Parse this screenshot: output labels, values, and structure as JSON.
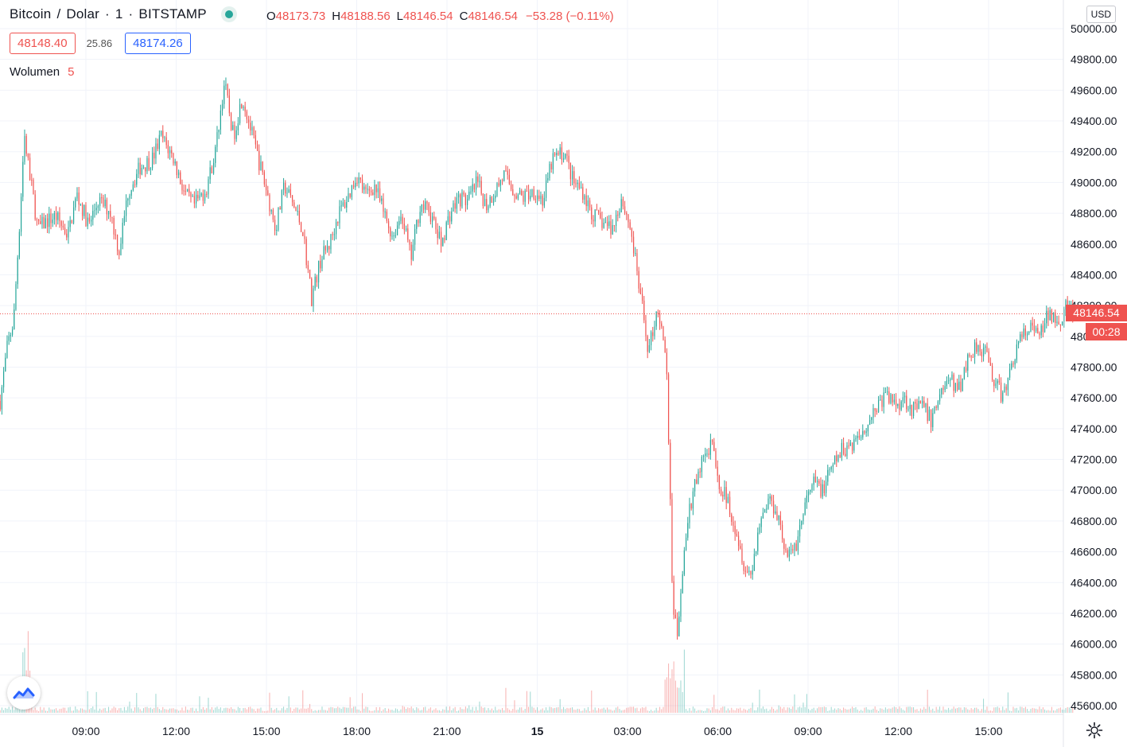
{
  "header": {
    "symbol": "Bitcoin",
    "currency": "Dolar",
    "interval": "1",
    "exchange": "BITSTAMP",
    "ohlc": {
      "o_label": "O",
      "o_value": "48173.73",
      "h_label": "H",
      "h_value": "48188.56",
      "l_label": "L",
      "l_value": "48146.54",
      "c_label": "C",
      "c_value": "48146.54",
      "change": "−53.28 (−0.11%)"
    },
    "bid": "48148.40",
    "spread": "25.86",
    "ask": "48174.26",
    "volume_label": "Wolumen",
    "volume_length": "5"
  },
  "price_axis": {
    "currency": "USD",
    "last_price": "48146.54",
    "countdown": "00:28"
  },
  "colors": {
    "up": "#26a69a",
    "down": "#ef5350",
    "grid": "#f0f3fa",
    "text": "#131722"
  },
  "chart_data": {
    "type": "candlestick",
    "y_range": [
      45520,
      50140
    ],
    "y_ticks": [
      45600,
      45800,
      46000,
      46200,
      46400,
      46600,
      46800,
      47000,
      47200,
      47400,
      47600,
      47800,
      48000,
      48200,
      48400,
      48600,
      48800,
      49000,
      49200,
      49400,
      49600,
      49800,
      50000
    ],
    "y_tick_labels": [
      "45600.00",
      "45800.00",
      "46000.00",
      "46200.00",
      "46400.00",
      "46600.00",
      "46800.00",
      "47000.00",
      "47200.00",
      "47400.00",
      "47600.00",
      "47800.00",
      "48000.00",
      "48200.00",
      "48400.00",
      "48600.00",
      "48800.00",
      "49000.00",
      "49200.00",
      "49400.00",
      "49600.00",
      "49800.00",
      "50000.00"
    ],
    "x_ticks": [
      "09:00",
      "12:00",
      "15:00",
      "18:00",
      "21:00",
      "15",
      "03:00",
      "06:00",
      "09:00",
      "12:00",
      "15:00"
    ],
    "x_tick_hours": [
      9,
      12,
      15,
      18,
      21,
      24,
      27,
      30,
      33,
      36,
      39
    ],
    "x_range_hours": [
      6.15,
      41.8
    ],
    "grid": true,
    "close_path": [
      [
        6.15,
        47580
      ],
      [
        6.4,
        47950
      ],
      [
        6.6,
        48100
      ],
      [
        6.8,
        48750
      ],
      [
        6.95,
        49300
      ],
      [
        7.1,
        49100
      ],
      [
        7.4,
        48700
      ],
      [
        7.7,
        48750
      ],
      [
        8.0,
        48780
      ],
      [
        8.4,
        48660
      ],
      [
        8.7,
        48920
      ],
      [
        9.1,
        48720
      ],
      [
        9.4,
        48880
      ],
      [
        9.8,
        48820
      ],
      [
        10.1,
        48550
      ],
      [
        10.4,
        48940
      ],
      [
        10.8,
        49100
      ],
      [
        11.2,
        49150
      ],
      [
        11.5,
        49300
      ],
      [
        11.9,
        49160
      ],
      [
        12.3,
        48920
      ],
      [
        12.6,
        48850
      ],
      [
        13.0,
        48960
      ],
      [
        13.3,
        49200
      ],
      [
        13.6,
        49650
      ],
      [
        13.9,
        49300
      ],
      [
        14.2,
        49560
      ],
      [
        14.6,
        49250
      ],
      [
        15.0,
        48950
      ],
      [
        15.3,
        48700
      ],
      [
        15.6,
        48980
      ],
      [
        15.9,
        48850
      ],
      [
        16.2,
        48700
      ],
      [
        16.5,
        48250
      ],
      [
        16.8,
        48500
      ],
      [
        17.1,
        48600
      ],
      [
        17.4,
        48800
      ],
      [
        17.7,
        48900
      ],
      [
        18.0,
        49050
      ],
      [
        18.3,
        48920
      ],
      [
        18.6,
        48980
      ],
      [
        18.9,
        48800
      ],
      [
        19.2,
        48650
      ],
      [
        19.5,
        48800
      ],
      [
        19.8,
        48500
      ],
      [
        20.1,
        48850
      ],
      [
        20.4,
        48820
      ],
      [
        20.8,
        48600
      ],
      [
        21.1,
        48800
      ],
      [
        21.4,
        48900
      ],
      [
        21.7,
        48880
      ],
      [
        22.0,
        49000
      ],
      [
        22.3,
        48850
      ],
      [
        22.6,
        48950
      ],
      [
        22.9,
        49050
      ],
      [
        23.2,
        48950
      ],
      [
        23.5,
        48900
      ],
      [
        23.9,
        48950
      ],
      [
        24.2,
        48880
      ],
      [
        24.5,
        49150
      ],
      [
        24.9,
        49200
      ],
      [
        25.2,
        49000
      ],
      [
        25.5,
        48950
      ],
      [
        25.8,
        48800
      ],
      [
        26.1,
        48750
      ],
      [
        26.5,
        48700
      ],
      [
        26.8,
        48900
      ],
      [
        27.1,
        48700
      ],
      [
        27.4,
        48300
      ],
      [
        27.7,
        47900
      ],
      [
        28.0,
        48200
      ],
      [
        28.3,
        47800
      ],
      [
        28.5,
        46300
      ],
      [
        28.65,
        46050
      ],
      [
        28.8,
        46450
      ],
      [
        29.0,
        46800
      ],
      [
        29.2,
        47000
      ],
      [
        29.5,
        47200
      ],
      [
        29.8,
        47300
      ],
      [
        30.0,
        47050
      ],
      [
        30.3,
        46950
      ],
      [
        30.6,
        46750
      ],
      [
        30.9,
        46500
      ],
      [
        31.1,
        46450
      ],
      [
        31.4,
        46800
      ],
      [
        31.7,
        46950
      ],
      [
        32.0,
        46850
      ],
      [
        32.3,
        46550
      ],
      [
        32.6,
        46650
      ],
      [
        32.9,
        46900
      ],
      [
        33.2,
        47050
      ],
      [
        33.5,
        47000
      ],
      [
        33.8,
        47150
      ],
      [
        34.1,
        47250
      ],
      [
        34.4,
        47300
      ],
      [
        34.7,
        47350
      ],
      [
        35.0,
        47450
      ],
      [
        35.3,
        47550
      ],
      [
        35.6,
        47620
      ],
      [
        35.9,
        47560
      ],
      [
        36.2,
        47600
      ],
      [
        36.5,
        47520
      ],
      [
        36.8,
        47550
      ],
      [
        37.1,
        47450
      ],
      [
        37.4,
        47650
      ],
      [
        37.7,
        47720
      ],
      [
        38.0,
        47650
      ],
      [
        38.3,
        47850
      ],
      [
        38.6,
        47950
      ],
      [
        38.9,
        47900
      ],
      [
        39.2,
        47700
      ],
      [
        39.5,
        47600
      ],
      [
        39.8,
        47850
      ],
      [
        40.1,
        48000
      ],
      [
        40.4,
        48050
      ],
      [
        40.7,
        48000
      ],
      [
        41.0,
        48150
      ],
      [
        41.4,
        48120
      ],
      [
        41.6,
        48200
      ],
      [
        41.8,
        48146
      ]
    ]
  }
}
